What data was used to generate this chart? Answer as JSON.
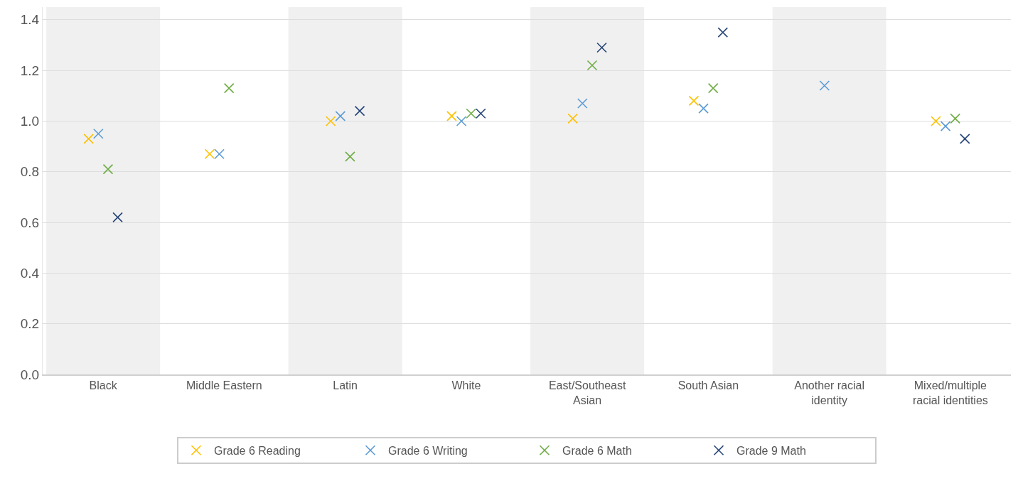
{
  "chart_data": {
    "type": "scatter",
    "categories": [
      "Black",
      "Middle Eastern",
      "Latin",
      "White",
      "East/Southeast Asian",
      "South Asian",
      "Another racial identity",
      "Mixed/multiple racial identities"
    ],
    "series": [
      {
        "name": "Grade 6 Reading",
        "color": "#ffc000",
        "values": [
          0.93,
          0.87,
          1.0,
          1.02,
          1.01,
          1.08,
          null,
          1.0
        ]
      },
      {
        "name": "Grade 6 Writing",
        "color": "#5b9bd5",
        "values": [
          0.95,
          0.87,
          1.02,
          1.0,
          1.07,
          1.05,
          1.14,
          0.98
        ]
      },
      {
        "name": "Grade 6 Math",
        "color": "#70ad47",
        "values": [
          0.81,
          1.13,
          0.86,
          1.03,
          1.22,
          1.13,
          null,
          1.01
        ]
      },
      {
        "name": "Grade 9 Math",
        "color": "#264478",
        "values": [
          0.62,
          null,
          1.04,
          1.03,
          1.29,
          1.35,
          null,
          0.93
        ]
      }
    ],
    "ylim": [
      0,
      1.45
    ],
    "yticks": [
      {
        "value": 0,
        "label": "0.0"
      },
      {
        "value": 0.2,
        "label": "0.2"
      },
      {
        "value": 0.4,
        "label": "0.4"
      },
      {
        "value": 0.6,
        "label": "0.6"
      },
      {
        "value": 0.8,
        "label": "0.8"
      },
      {
        "value": 1.0,
        "label": "1.0"
      },
      {
        "value": 1.2,
        "label": "1.2"
      },
      {
        "value": 1.4,
        "label": "1.4"
      }
    ],
    "bands": [
      {
        "axis": "x",
        "from": "Black",
        "to": "Black",
        "color": "#f0f0f0"
      },
      {
        "axis": "x",
        "from": "Latin",
        "to": "Latin",
        "color": "#f0f0f0"
      },
      {
        "axis": "x",
        "from": "East/Southeast Asian",
        "to": "East/Southeast Asian",
        "color": "#f0f0f0"
      },
      {
        "axis": "x",
        "from": "Another racial identity",
        "to": "Another racial identity",
        "color": "#f0f0f0"
      }
    ],
    "grid": "y",
    "legend": "bottom",
    "marker": "cross"
  }
}
